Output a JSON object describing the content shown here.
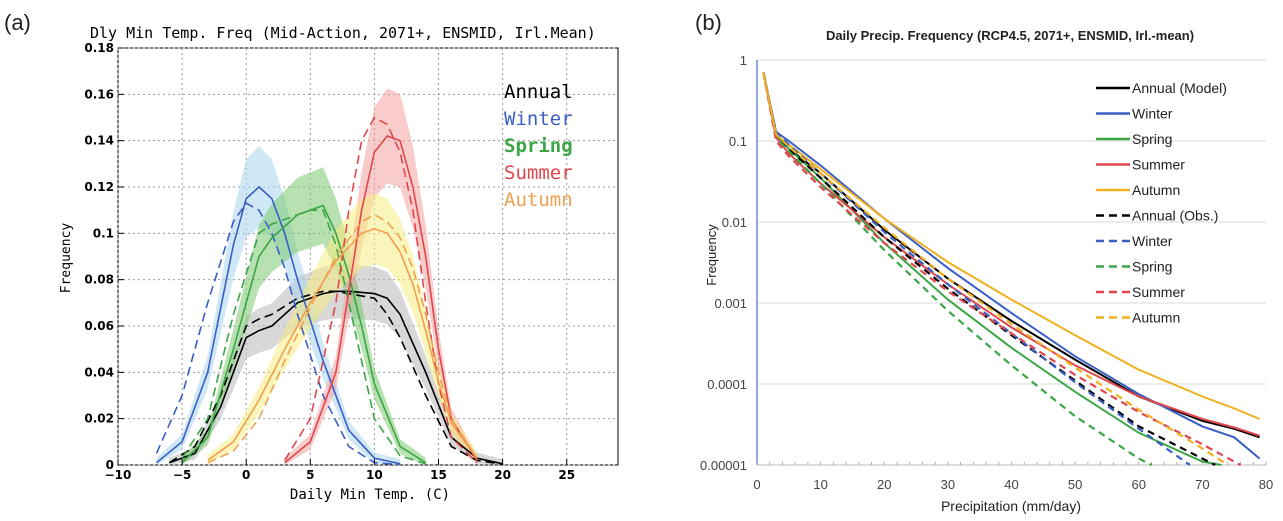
{
  "panels": [
    {
      "label": "(a)",
      "chart_data": {
        "type": "line",
        "title": "Dly Min Temp. Freq (Mid-Action, 2071+, ENSMID, Irl.Mean)",
        "xlabel": "Daily Min Temp. (C)",
        "ylabel": "Frequency",
        "xlim": [
          -10,
          29
        ],
        "ylim": [
          0,
          0.18
        ],
        "xticks": [
          -10,
          -5,
          0,
          5,
          10,
          15,
          20,
          25
        ],
        "yticks": [
          0,
          0.02,
          0.04,
          0.06,
          0.08,
          0.1,
          0.12,
          0.14,
          0.16,
          0.18
        ],
        "ytick_labels": [
          "0",
          "0.02",
          "0.04",
          "0.06",
          "0.08",
          "0.1",
          "0.12",
          "0.14",
          "0.16",
          "0.18"
        ],
        "grid": true,
        "legend_position": "top-right",
        "series": [
          {
            "name": "Annual",
            "color": "#000000",
            "fill": "#b8b8b8",
            "x": [
              -6,
              -4,
              -2,
              0,
              1,
              2,
              4,
              6,
              7,
              8,
              10,
              11,
              12,
              14,
              16,
              18,
              20
            ],
            "y": [
              0.001,
              0.005,
              0.025,
              0.055,
              0.058,
              0.06,
              0.07,
              0.074,
              0.075,
              0.075,
              0.074,
              0.072,
              0.065,
              0.04,
              0.012,
              0.003,
              0.0005
            ],
            "y_obs": [
              0.001,
              0.008,
              0.03,
              0.06,
              0.063,
              0.065,
              0.072,
              0.075,
              0.075,
              0.074,
              0.072,
              0.065,
              0.055,
              0.03,
              0.008,
              0.002,
              0.0003
            ]
          },
          {
            "name": "Winter",
            "color": "#3a5fc4",
            "fill": "#a9d6ec",
            "x": [
              -7,
              -5,
              -3,
              -1,
              0,
              1,
              2,
              3,
              4,
              6,
              8,
              10,
              12
            ],
            "y": [
              0.001,
              0.01,
              0.04,
              0.095,
              0.115,
              0.12,
              0.115,
              0.1,
              0.08,
              0.045,
              0.015,
              0.003,
              0.0005
            ],
            "y_obs": [
              0.005,
              0.03,
              0.07,
              0.105,
              0.113,
              0.11,
              0.1,
              0.085,
              0.065,
              0.03,
              0.008,
              0.001,
              0.0002
            ]
          },
          {
            "name": "Spring",
            "color": "#3aa645",
            "fill": "#7cc870",
            "x": [
              -5,
              -3,
              -1,
              1,
              2,
              3,
              4,
              5,
              6,
              7,
              8,
              9,
              10,
              12,
              14
            ],
            "y": [
              0.001,
              0.012,
              0.05,
              0.09,
              0.098,
              0.103,
              0.108,
              0.11,
              0.112,
              0.1,
              0.082,
              0.06,
              0.035,
              0.008,
              0.001
            ],
            "y_obs": [
              0.003,
              0.02,
              0.065,
              0.1,
              0.104,
              0.106,
              0.108,
              0.11,
              0.11,
              0.095,
              0.07,
              0.045,
              0.02,
              0.004,
              0.0005
            ]
          },
          {
            "name": "Summer",
            "color": "#e0474c",
            "fill": "#f4a3a3",
            "x": [
              3,
              5,
              7,
              8,
              9,
              10,
              11,
              12,
              13,
              14,
              15,
              16,
              18
            ],
            "y": [
              0.001,
              0.01,
              0.04,
              0.075,
              0.11,
              0.135,
              0.142,
              0.14,
              0.12,
              0.09,
              0.05,
              0.02,
              0.002
            ],
            "y_obs": [
              0.002,
              0.02,
              0.07,
              0.11,
              0.14,
              0.15,
              0.147,
              0.135,
              0.11,
              0.07,
              0.035,
              0.012,
              0.001
            ]
          },
          {
            "name": "Autumn",
            "color": "#f0a050",
            "fill": "#f6ed82",
            "x": [
              -3,
              -1,
              1,
              3,
              5,
              7,
              9,
              10,
              11,
              12,
              13,
              14,
              15,
              16,
              18
            ],
            "y": [
              0.002,
              0.01,
              0.028,
              0.05,
              0.07,
              0.088,
              0.1,
              0.102,
              0.1,
              0.092,
              0.078,
              0.058,
              0.036,
              0.018,
              0.003
            ],
            "y_obs": [
              0.001,
              0.006,
              0.02,
              0.045,
              0.068,
              0.09,
              0.105,
              0.108,
              0.105,
              0.098,
              0.085,
              0.065,
              0.04,
              0.02,
              0.003
            ]
          }
        ]
      }
    },
    {
      "label": "(b)",
      "chart_data": {
        "type": "line",
        "title": "Daily Precip. Frequency (RCP4.5, 2071+, ENSMID, Irl.-mean)",
        "xlabel": "Precipitation (mm/day)",
        "ylabel": "Frequency",
        "y_scale": "log",
        "xlim": [
          0,
          80
        ],
        "ylim": [
          1e-05,
          1
        ],
        "xticks": [
          0,
          10,
          20,
          30,
          40,
          50,
          60,
          70,
          80
        ],
        "yticks": [
          1e-05,
          0.0001,
          0.001,
          0.01,
          0.1,
          1
        ],
        "ytick_labels": [
          "0.00001",
          "0.0001",
          "0.001",
          "0.01",
          "0.1",
          "1"
        ],
        "grid": true,
        "legend_position": "top-right",
        "series": [
          {
            "name": "Annual (Model)",
            "color": "#000000",
            "dash": "solid",
            "x": [
              1,
              3,
              5,
              10,
              20,
              30,
              40,
              50,
              60,
              70,
              75,
              79
            ],
            "y": [
              0.7,
              0.12,
              0.08,
              0.04,
              0.008,
              0.002,
              0.0006,
              0.0002,
              7e-05,
              3.5e-05,
              2.8e-05,
              2.2e-05
            ]
          },
          {
            "name": "Winter",
            "color": "#3a5fc4",
            "dash": "solid",
            "x": [
              1,
              3,
              5,
              10,
              20,
              30,
              40,
              50,
              60,
              70,
              75,
              79
            ],
            "y": [
              0.7,
              0.13,
              0.1,
              0.05,
              0.011,
              0.0027,
              0.00075,
              0.00022,
              7.5e-05,
              3e-05,
              2.2e-05,
              1.2e-05
            ]
          },
          {
            "name": "Spring",
            "color": "#3aa645",
            "dash": "solid",
            "x": [
              1,
              3,
              5,
              10,
              20,
              30,
              40,
              50,
              60,
              70,
              73
            ],
            "y": [
              0.7,
              0.12,
              0.08,
              0.035,
              0.0055,
              0.0011,
              0.00028,
              8e-05,
              2.5e-05,
              1.1e-05,
              1e-05
            ]
          },
          {
            "name": "Summer",
            "color": "#e0474c",
            "dash": "solid",
            "x": [
              1,
              3,
              5,
              10,
              20,
              30,
              40,
              50,
              60,
              70,
              75,
              79
            ],
            "y": [
              0.7,
              0.11,
              0.07,
              0.03,
              0.0065,
              0.0017,
              0.0005,
              0.00017,
              7e-05,
              3.7e-05,
              2.9e-05,
              2.3e-05
            ]
          },
          {
            "name": "Autumn",
            "color": "#f0b020",
            "dash": "solid",
            "x": [
              1,
              3,
              5,
              10,
              20,
              30,
              40,
              50,
              60,
              70,
              75,
              79
            ],
            "y": [
              0.7,
              0.12,
              0.09,
              0.045,
              0.011,
              0.0032,
              0.0011,
              0.0004,
              0.00015,
              7e-05,
              5e-05,
              3.7e-05
            ]
          },
          {
            "name": "Annual (Obs.)",
            "color": "#000000",
            "dash": "dashed",
            "x": [
              1,
              3,
              5,
              10,
              20,
              30,
              40,
              50,
              60,
              70,
              72
            ],
            "y": [
              0.7,
              0.12,
              0.08,
              0.035,
              0.0065,
              0.0015,
              0.0004,
              0.00011,
              3e-05,
              1.2e-05,
              1e-05
            ]
          },
          {
            "name": "Winter",
            "color": "#3a5fc4",
            "dash": "dashed",
            "x": [
              1,
              3,
              5,
              10,
              20,
              30,
              40,
              50,
              60,
              68
            ],
            "y": [
              0.7,
              0.13,
              0.09,
              0.04,
              0.0075,
              0.0017,
              0.00042,
              0.000105,
              2.8e-05,
              1e-05
            ]
          },
          {
            "name": "Spring",
            "color": "#3aa645",
            "dash": "dashed",
            "x": [
              1,
              3,
              5,
              10,
              20,
              30,
              40,
              50,
              60,
              62
            ],
            "y": [
              0.7,
              0.11,
              0.075,
              0.03,
              0.0045,
              0.0008,
              0.00017,
              4e-05,
              1.2e-05,
              1e-05
            ]
          },
          {
            "name": "Summer",
            "color": "#e0474c",
            "dash": "dashed",
            "x": [
              1,
              3,
              5,
              10,
              20,
              30,
              40,
              50,
              60,
              70,
              76
            ],
            "y": [
              0.7,
              0.1,
              0.065,
              0.027,
              0.0055,
              0.0014,
              0.00042,
              0.00013,
              4.5e-05,
              1.8e-05,
              1e-05
            ]
          },
          {
            "name": "Autumn",
            "color": "#f0b020",
            "dash": "dashed",
            "x": [
              1,
              3,
              5,
              10,
              20,
              30,
              40,
              50,
              60,
              70,
              74
            ],
            "y": [
              0.7,
              0.12,
              0.085,
              0.04,
              0.0085,
              0.002,
              0.00055,
              0.00016,
              4.8e-05,
              1.6e-05,
              1e-05
            ]
          }
        ]
      }
    }
  ]
}
